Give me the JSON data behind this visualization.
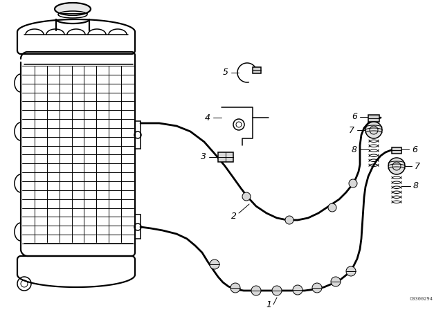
{
  "bg_color": "#ffffff",
  "lc": "#000000",
  "lw_thin": 0.7,
  "lw_med": 1.1,
  "lw_thick": 1.6,
  "lw_pipe": 2.0,
  "watermark": "C0300294",
  "fig_w": 6.4,
  "fig_h": 4.48,
  "dpi": 100
}
